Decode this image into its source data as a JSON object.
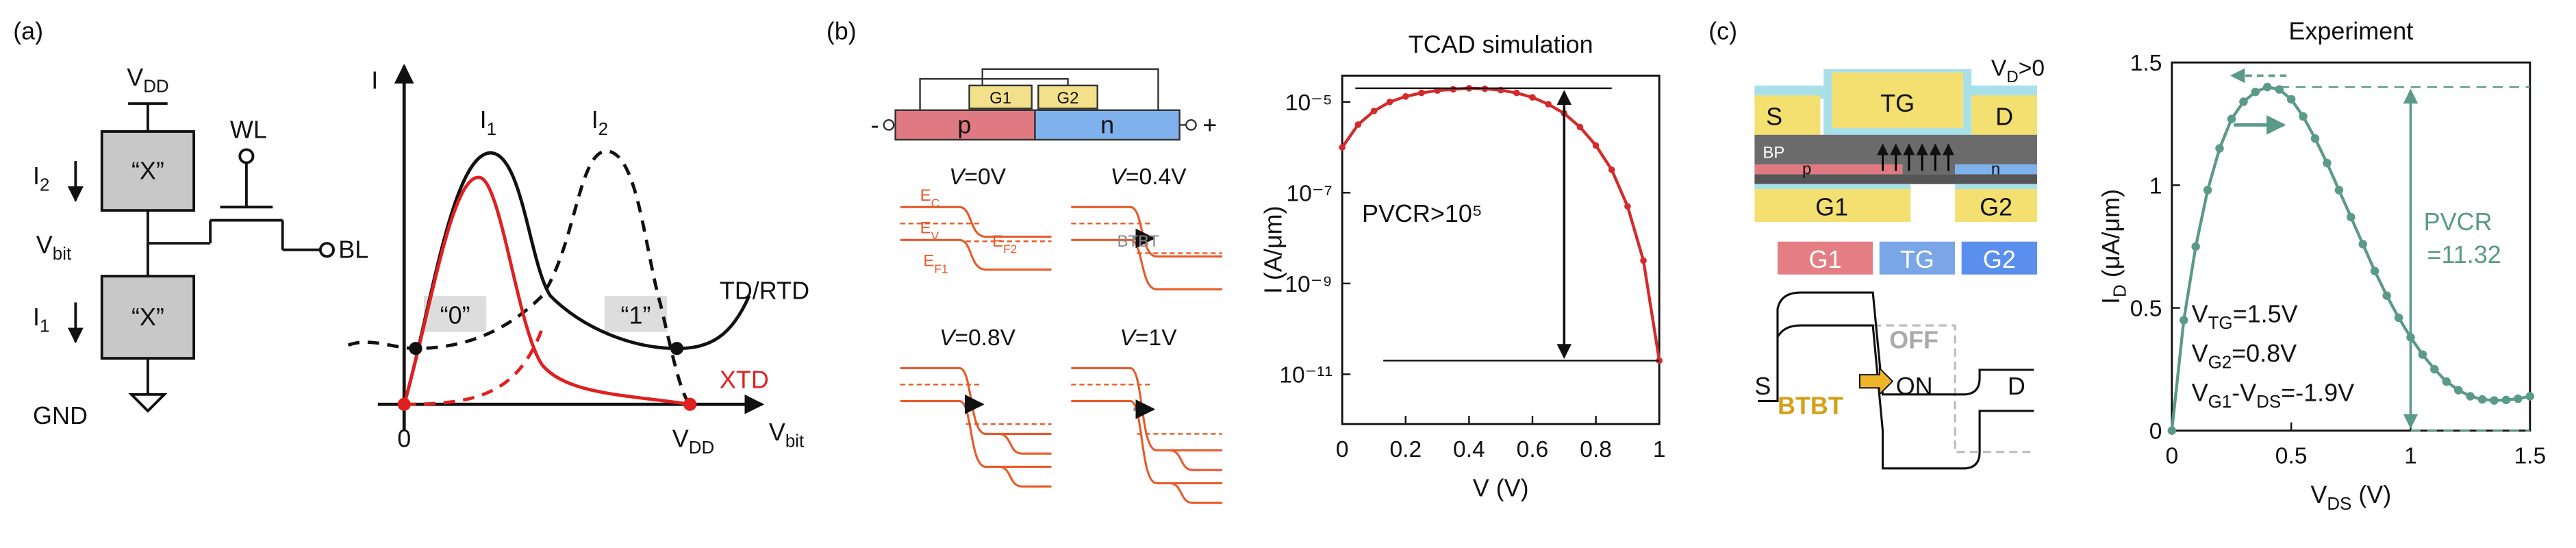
{
  "panel_a": {
    "label": "(a)",
    "circuit": {
      "vdd": {
        "main": "V",
        "sub": "DD"
      },
      "gate_top": "“X”",
      "gate_bottom": "“X”",
      "i2": {
        "main": "I",
        "sub": "2"
      },
      "i1": {
        "main": "I",
        "sub": "1"
      },
      "wl": "WL",
      "bl": "BL",
      "vbit": {
        "main": "V",
        "sub": "bit"
      },
      "gnd": "GND"
    },
    "sketch": {
      "y_axis": "I",
      "x_axis": {
        "main": "V",
        "sub": "bit"
      },
      "peak_1": {
        "main": "I",
        "sub": "1"
      },
      "peak_2": {
        "main": "I",
        "sub": "2"
      },
      "state_0": "“0”",
      "state_1": "“1”",
      "td_label": "TD/RTD",
      "xtd_label": "XTD",
      "origin": "0",
      "vdd": {
        "main": "V",
        "sub": "DD"
      }
    }
  },
  "panel_b": {
    "label": "(b)",
    "device": {
      "g1": "G1",
      "g2": "G2",
      "p": "p",
      "n": "n",
      "minus": "-",
      "plus": "+"
    },
    "bands": [
      {
        "var": "V",
        "rest": "=0V"
      },
      {
        "var": "V",
        "rest": "=0.4V"
      },
      {
        "var": "V",
        "rest": "=0.8V"
      },
      {
        "var": "V",
        "rest": "=1V"
      }
    ],
    "band_labels": {
      "ec": {
        "main": "E",
        "sub": "C"
      },
      "ev": {
        "main": "E",
        "sub": "V"
      },
      "ef1": {
        "main": "E",
        "sub": "F1"
      },
      "ef2": {
        "main": "E",
        "sub": "F2"
      },
      "btbt": "BTBT"
    }
  },
  "chart_data": [
    {
      "type": "line",
      "title": "TCAD simulation",
      "x_label": "V (V)",
      "y_label": "I (A/μm)",
      "color": "#d42a2a",
      "log_y": true,
      "x": [
        0,
        0.05,
        0.1,
        0.15,
        0.2,
        0.25,
        0.3,
        0.35,
        0.4,
        0.45,
        0.5,
        0.55,
        0.6,
        0.65,
        0.7,
        0.75,
        0.8,
        0.85,
        0.9,
        0.95,
        1
      ],
      "values": [
        1e-06,
        3.16e-06,
        6.3e-06,
        1e-05,
        1.32e-05,
        1.58e-05,
        1.78e-05,
        1.9e-05,
        2e-05,
        1.95e-05,
        1.82e-05,
        1.58e-05,
        1.26e-05,
        8.9e-06,
        5.6e-06,
        2.8e-06,
        1.1e-06,
        3.2e-07,
        5e-08,
        3.2e-09,
        2e-11
      ],
      "xlim": [
        0,
        1
      ],
      "xticks": [
        0,
        0.2,
        0.4,
        0.6,
        0.8,
        1
      ],
      "ylim": [
        8e-13,
        3.8e-05
      ],
      "yticks": [
        {
          "value": 1e-11,
          "label": "10⁻¹¹"
        },
        {
          "value": 1e-09,
          "label": "10⁻⁹"
        },
        {
          "value": 1e-07,
          "label": "10⁻⁷"
        },
        {
          "value": 1e-05,
          "label": "10⁻⁵"
        }
      ],
      "annotation": "PVCR>10⁵"
    },
    {
      "type": "line",
      "title": "Experiment",
      "x_label": {
        "main": "V",
        "sub": "DS",
        "rest": " (V)"
      },
      "y_label": {
        "main": "I",
        "sub": "D",
        "rest": " (μA/μm)"
      },
      "color": "#5a9a88",
      "x": [
        0,
        0.05,
        0.1,
        0.15,
        0.2,
        0.25,
        0.3,
        0.35,
        0.4,
        0.45,
        0.5,
        0.55,
        0.6,
        0.65,
        0.7,
        0.75,
        0.8,
        0.85,
        0.9,
        0.95,
        1,
        1.05,
        1.1,
        1.15,
        1.2,
        1.25,
        1.3,
        1.35,
        1.4,
        1.45,
        1.5
      ],
      "values": [
        0,
        0.45,
        0.75,
        0.98,
        1.15,
        1.27,
        1.34,
        1.38,
        1.4,
        1.39,
        1.35,
        1.28,
        1.19,
        1.09,
        0.98,
        0.87,
        0.76,
        0.65,
        0.55,
        0.46,
        0.38,
        0.31,
        0.25,
        0.2,
        0.165,
        0.14,
        0.127,
        0.123,
        0.125,
        0.13,
        0.14
      ],
      "xlim": [
        0,
        1.5
      ],
      "xticks": [
        0,
        0.5,
        1,
        1.5
      ],
      "ylim": [
        0,
        1.5
      ],
      "yticks": [
        0,
        0.5,
        1,
        1.5
      ],
      "annotations": {
        "pvcr": "PVCR",
        "pvcr_value": "=11.32",
        "bias": [
          {
            "main": "V",
            "sub": "TG",
            "rest": "=1.5V"
          },
          {
            "main": "V",
            "sub": "G2",
            "rest": "=0.8V"
          },
          {
            "main": "V",
            "sub": "G1",
            "rest": "-V",
            "sub2": "DS",
            "rest2": "=-1.9V"
          }
        ]
      }
    }
  ],
  "panel_c": {
    "label": "(c)",
    "device": {
      "s": "S",
      "tg": "TG",
      "d": "D",
      "vd": {
        "main": "V",
        "sub": "D",
        "rest": ">0"
      },
      "bp": "BP",
      "p": "p",
      "n": "n",
      "g1": "G1",
      "g2": "G2"
    },
    "legend": [
      "G1",
      "TG",
      "G2"
    ],
    "band": {
      "s": "S",
      "off": "OFF",
      "on": "ON",
      "d": "D",
      "btbt": "BTBT"
    }
  }
}
